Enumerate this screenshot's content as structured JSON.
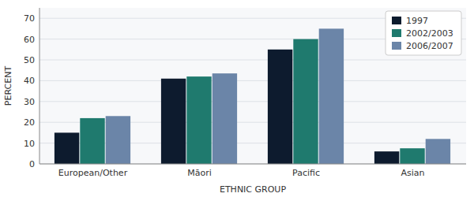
{
  "chart_data": {
    "type": "bar",
    "categories": [
      "European/Other",
      "Māori",
      "Pacific",
      "Asian"
    ],
    "series": [
      {
        "name": "1997",
        "color": "#0d1b2e",
        "values": [
          15,
          41,
          55,
          6
        ]
      },
      {
        "name": "2002/2003",
        "color": "#1f7a6e",
        "values": [
          22,
          42,
          60,
          7.5
        ]
      },
      {
        "name": "2006/2007",
        "color": "#6b85a8",
        "values": [
          23,
          43.5,
          65,
          12
        ]
      }
    ],
    "xlabel": "ETHNIC GROUP",
    "ylabel": "PERCENT",
    "ylim": [
      0,
      75
    ],
    "yticks": [
      0,
      10,
      20,
      30,
      40,
      50,
      60,
      70
    ],
    "grid": true,
    "legend": "upper right"
  }
}
